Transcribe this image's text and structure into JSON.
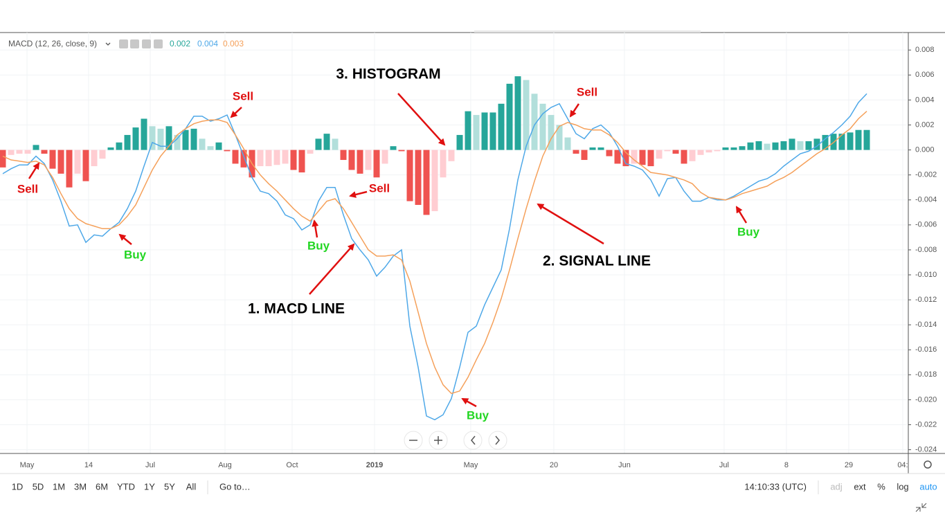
{
  "chart_data": {
    "type": "macd",
    "legend": {
      "label": "MACD (12, 26, close, 9)",
      "values": [
        0.002,
        0.004,
        0.003
      ]
    },
    "annotations": [
      "Sell",
      "Buy",
      "Sell",
      "Buy",
      "Sell",
      "Buy",
      "Sell",
      "Buy",
      "3. HISTOGRAM",
      "1. MACD LINE",
      "2. SIGNAL LINE"
    ],
    "xlim": [
      -0.333,
      108.833
    ],
    "xticks": [
      {
        "value": 2.92,
        "label": "May"
      },
      {
        "value": 10.33,
        "label": "14"
      },
      {
        "value": 17.75,
        "label": "Jul"
      },
      {
        "value": 26.75,
        "label": "Aug"
      },
      {
        "value": 34.83,
        "label": "Oct"
      },
      {
        "value": 44.75,
        "label": "2019"
      },
      {
        "value": 56.33,
        "label": "May"
      },
      {
        "value": 66.33,
        "label": "20"
      },
      {
        "value": 74.83,
        "label": "Jun"
      },
      {
        "value": 86.83,
        "label": "Jul"
      },
      {
        "value": 94.33,
        "label": "8"
      },
      {
        "value": 101.83,
        "label": "29"
      },
      {
        "value": 108.33,
        "label": "04:"
      }
    ],
    "ylim": [
      -0.0243,
      0.0094
    ],
    "yticks": [
      0.008,
      0.006,
      0.004,
      0.002,
      {
        "value": 0,
        "label": "0.000"
      },
      -0.002,
      -0.004,
      -0.006,
      -0.008,
      {
        "value": -0.01,
        "label": "-0.010"
      },
      -0.012,
      -0.014,
      -0.016,
      -0.018,
      {
        "value": -0.02,
        "label": "-0.020"
      },
      -0.022,
      -0.024
    ],
    "grid": true,
    "histogram_colors": {
      "grow_above": "#26a69a",
      "fall_above": "#b2dfdb",
      "grow_below": "#ffcdd2",
      "fall_below": "#ef5350"
    },
    "series": [
      {
        "kind": "histogram",
        "values": [
          -0.0014,
          -0.0004,
          -0.0003,
          -0.0003,
          0.0004,
          -0.0003,
          -0.0015,
          -0.0019,
          -0.003,
          -0.0019,
          -0.0025,
          -0.0013,
          -0.0007,
          0.0002,
          0.0006,
          0.0012,
          0.0018,
          0.0025,
          0.0019,
          0.0017,
          0.0019,
          0.0012,
          0.0016,
          0.0017,
          0.0009,
          0.0003,
          0.0006,
          -0.0001,
          -0.0011,
          -0.0014,
          -0.0022,
          -0.0013,
          -0.0013,
          -0.0012,
          -0.0011,
          -0.0016,
          -0.0018,
          -0.0003,
          0.0009,
          0.0013,
          0.0009,
          -0.0008,
          -0.0016,
          -0.0019,
          -0.0016,
          -0.0022,
          -0.0011,
          0.0003,
          -0.0001,
          -0.0041,
          -0.0044,
          -0.0052,
          -0.0049,
          -0.0022,
          -0.0009,
          0.0012,
          0.0031,
          0.0028,
          0.003,
          0.003,
          0.0037,
          0.0053,
          0.0059,
          0.0056,
          0.0045,
          0.0037,
          0.0028,
          0.002,
          0.001,
          -0.0003,
          -0.0008,
          0.0002,
          0.0002,
          -0.0005,
          -0.0011,
          -0.0013,
          -0.0011,
          -0.0012,
          -0.0013,
          -0.0007,
          -0.0001,
          -0.0003,
          -0.0011,
          -0.0009,
          -0.0004,
          -0.0002,
          -0.0001,
          0.0002,
          0.0002,
          0.0003,
          0.0006,
          0.0007,
          0.0005,
          0.0006,
          0.0007,
          0.0009,
          0.0007,
          0.0007,
          0.0009,
          0.0012,
          0.0013,
          0.0013,
          0.0014,
          0.0016,
          0.0016
        ]
      },
      {
        "kind": "line",
        "color": "#4ea8e8",
        "values": [
          -0.0019,
          -0.0015,
          -0.0012,
          -0.0012,
          -0.0005,
          -0.0011,
          -0.0024,
          -0.0041,
          -0.0061,
          -0.006,
          -0.0074,
          -0.0068,
          -0.0069,
          -0.0063,
          -0.0058,
          -0.0047,
          -0.0033,
          -0.0013,
          0.0006,
          0.0003,
          0.0003,
          0.0009,
          0.0017,
          0.0027,
          0.0027,
          0.0023,
          0.0025,
          0.0028,
          0.0012,
          -0.0005,
          -0.0022,
          -0.0033,
          -0.0035,
          -0.0041,
          -0.0052,
          -0.0055,
          -0.0064,
          -0.006,
          -0.0041,
          -0.003,
          -0.003,
          -0.0052,
          -0.0071,
          -0.008,
          -0.0088,
          -0.0101,
          -0.0094,
          -0.0085,
          -0.008,
          -0.0141,
          -0.0174,
          -0.0213,
          -0.0216,
          -0.0212,
          -0.0199,
          -0.0174,
          -0.0146,
          -0.0141,
          -0.0124,
          -0.011,
          -0.0096,
          -0.0063,
          -0.0024,
          0.0003,
          0.002,
          0.0029,
          0.0034,
          0.0037,
          0.0025,
          0.0013,
          0.0009,
          0.0017,
          0.002,
          0.0014,
          0.0003,
          -0.0011,
          -0.0013,
          -0.0016,
          -0.0024,
          -0.0037,
          -0.0023,
          -0.0022,
          -0.0033,
          -0.0041,
          -0.0041,
          -0.0038,
          -0.004,
          -0.004,
          -0.0037,
          -0.0033,
          -0.0029,
          -0.0025,
          -0.0023,
          -0.0019,
          -0.0013,
          -0.0008,
          -0.0003,
          -0.0001,
          0.0003,
          0.0009,
          0.0014,
          0.002,
          0.0027,
          0.0038,
          0.0045
        ]
      },
      {
        "kind": "line",
        "color": "#f5a05a",
        "values": [
          -0.0005,
          -0.0008,
          -0.0009,
          -0.001,
          -0.0009,
          -0.0012,
          -0.0022,
          -0.0035,
          -0.0047,
          -0.0055,
          -0.0059,
          -0.0061,
          -0.0063,
          -0.0063,
          -0.006,
          -0.0053,
          -0.0044,
          -0.003,
          -0.0016,
          -0.0005,
          0.0003,
          0.0012,
          0.0017,
          0.0021,
          0.0023,
          0.0024,
          0.0024,
          0.0022,
          0.0012,
          0.0001,
          -0.0011,
          -0.002,
          -0.0027,
          -0.0033,
          -0.004,
          -0.0047,
          -0.0053,
          -0.0057,
          -0.0049,
          -0.0041,
          -0.0039,
          -0.0047,
          -0.0058,
          -0.0069,
          -0.008,
          -0.0085,
          -0.0085,
          -0.0084,
          -0.0088,
          -0.0105,
          -0.013,
          -0.0155,
          -0.0174,
          -0.0188,
          -0.0195,
          -0.0193,
          -0.0182,
          -0.0168,
          -0.0155,
          -0.0138,
          -0.0119,
          -0.0096,
          -0.0071,
          -0.0047,
          -0.0025,
          -0.0005,
          0.0009,
          0.0019,
          0.0022,
          0.002,
          0.0017,
          0.0016,
          0.0016,
          0.0012,
          0.0006,
          -0.0002,
          -0.0008,
          -0.0013,
          -0.0018,
          -0.0019,
          -0.002,
          -0.0022,
          -0.0024,
          -0.0027,
          -0.0034,
          -0.0038,
          -0.0039,
          -0.004,
          -0.0038,
          -0.0035,
          -0.0033,
          -0.0031,
          -0.0029,
          -0.0025,
          -0.0022,
          -0.0018,
          -0.0013,
          -0.0008,
          -0.0003,
          0.0001,
          0.0006,
          0.0012,
          0.0017,
          0.0025,
          0.0031
        ]
      }
    ]
  },
  "toolbar": {
    "ranges": [
      "1D",
      "5D",
      "1M",
      "3M",
      "6M",
      "YTD",
      "1Y",
      "5Y",
      "All"
    ],
    "goto": "Go to…",
    "time": "14:10:33 (UTC)",
    "options": [
      "adj",
      "ext",
      "%",
      "log",
      "auto"
    ]
  }
}
